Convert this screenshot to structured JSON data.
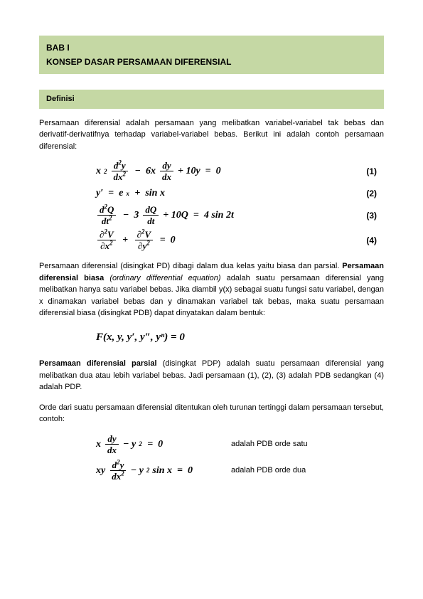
{
  "header": {
    "line1": "BAB I",
    "line2": "KONSEP DASAR PERSAMAAN  DIFERENSIAL"
  },
  "section1": {
    "title": "Definisi"
  },
  "para1": "Persamaan diferensial adalah persamaan yang melibatkan variabel-variabel tak bebas dan derivatif-derivatifnya terhadap variabel-variabel bebas. Berikut ini adalah contoh persamaan diferensial:",
  "equations": {
    "eq1": {
      "num": "(1)"
    },
    "eq2": {
      "num": "(2)"
    },
    "eq3": {
      "num": "(3)"
    },
    "eq4": {
      "num": "(4)"
    }
  },
  "para2_pre": "Persamaan diferensial (disingkat PD) dibagi dalam dua kelas yaitu biasa dan parsial. ",
  "para2_bold": "Persamaan diferensial biasa",
  "para2_italic": " (ordinary differential equation)",
  "para2_post": " adalah suatu persamaan diferensial yang melibatkan hanya satu variabel bebas. Jika diambil y(x) sebagai suatu fungsi satu variabel, dengan x dinamakan variabel bebas dan y dinamakan variabel tak bebas, maka suatu persamaan diferensial biasa (disingkat PDB) dapat dinyatakan dalam bentuk:",
  "eq_center": "F(x, y, y′, y″, yⁿ)  =  0",
  "para3_bold": "Persamaan diferensial parsial",
  "para3_post": " (disingkat PDP) adalah suatu persamaan diferensial yang melibatkan dua atau lebih variabel bebas. Jadi persamaan (1), (2), (3) adalah PDB sedangkan (4) adalah PDP.",
  "para4": "Orde dari suatu persamaan diferensial ditentukan oleh turunan tertinggi dalam persamaan tersebut, contoh:",
  "orde1_desc": "adalah PDB orde satu",
  "orde2_desc": "adalah PDB orde dua",
  "colors": {
    "accent_bg": "#c5d8a4",
    "text": "#000000",
    "page_bg": "#ffffff"
  },
  "typography": {
    "body_font": "Verdana",
    "body_size_pt": 8,
    "math_font": "Cambria Math",
    "title_weight": "bold"
  }
}
